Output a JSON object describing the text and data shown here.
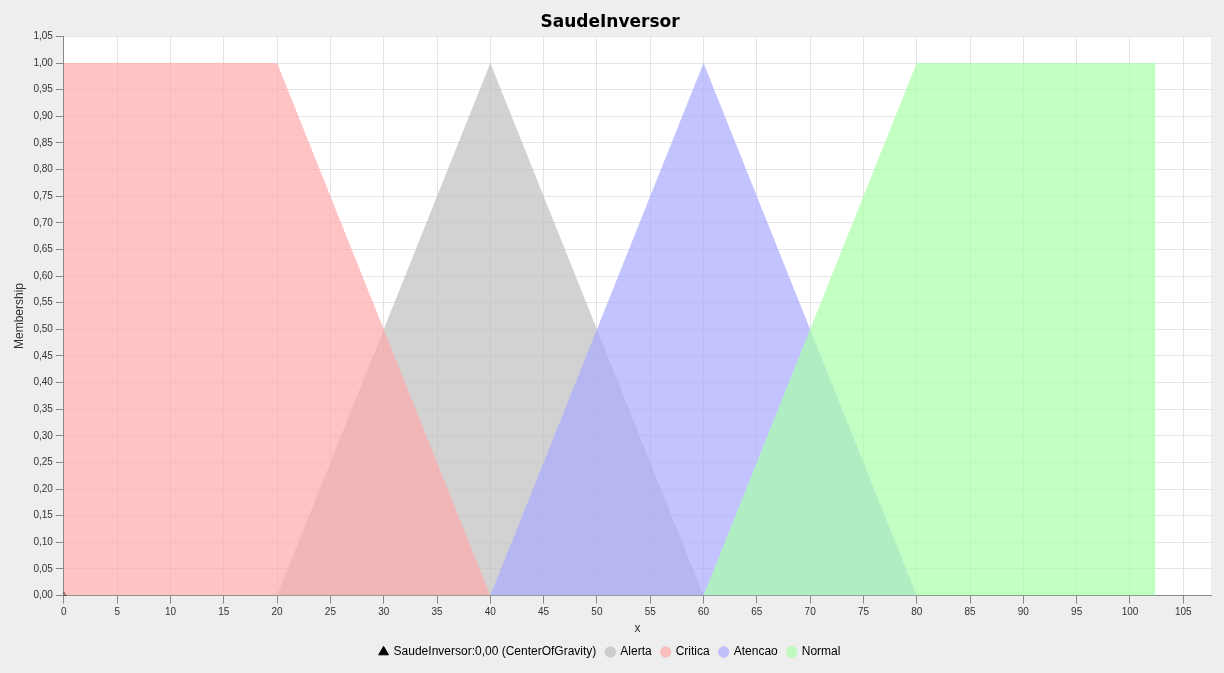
{
  "chart_data": {
    "type": "area",
    "title": "SaudeInversor",
    "xlabel": "x",
    "ylabel": "Membership",
    "series": [
      {
        "name": "SaudeInversor:0,00 (CenterOfGravity)",
        "type": "scatter",
        "marker": "triangle",
        "color": "#000000",
        "x": [
          0
        ],
        "values": [
          0
        ]
      },
      {
        "name": "Alerta",
        "color": "#bfbfbf",
        "x": [
          20,
          40,
          60
        ],
        "values": [
          0,
          1,
          0
        ]
      },
      {
        "name": "Critica",
        "color": "#ffaaaa",
        "x": [
          0,
          20,
          40
        ],
        "values": [
          1,
          1,
          0
        ]
      },
      {
        "name": "Atencao",
        "color": "#aaaaff",
        "x": [
          40,
          60,
          80
        ],
        "values": [
          0,
          1,
          0
        ]
      },
      {
        "name": "Normal",
        "color": "#aaffaa",
        "x": [
          60,
          80,
          102.4
        ],
        "values": [
          0,
          1,
          1
        ]
      }
    ],
    "xlim": [
      0,
      107.6
    ],
    "xticks": [
      0,
      5,
      10,
      15,
      20,
      25,
      30,
      35,
      40,
      45,
      50,
      55,
      60,
      65,
      70,
      75,
      80,
      85,
      90,
      95,
      100,
      105
    ],
    "ylim": [
      0,
      1.05
    ],
    "yticks": [
      {
        "value": 0,
        "label": "0,00"
      },
      {
        "value": 0.05,
        "label": "0,05"
      },
      {
        "value": 0.1,
        "label": "0,10"
      },
      {
        "value": 0.15,
        "label": "0,15"
      },
      {
        "value": 0.2,
        "label": "0,20"
      },
      {
        "value": 0.25,
        "label": "0,25"
      },
      {
        "value": 0.3,
        "label": "0,30"
      },
      {
        "value": 0.35,
        "label": "0,35"
      },
      {
        "value": 0.4,
        "label": "0,40"
      },
      {
        "value": 0.45,
        "label": "0,45"
      },
      {
        "value": 0.5,
        "label": "0,50"
      },
      {
        "value": 0.55,
        "label": "0,55"
      },
      {
        "value": 0.6,
        "label": "0,60"
      },
      {
        "value": 0.65,
        "label": "0,65"
      },
      {
        "value": 0.7,
        "label": "0,70"
      },
      {
        "value": 0.75,
        "label": "0,75"
      },
      {
        "value": 0.8,
        "label": "0,80"
      },
      {
        "value": 0.85,
        "label": "0,85"
      },
      {
        "value": 0.9,
        "label": "0,90"
      },
      {
        "value": 0.95,
        "label": "0,95"
      },
      {
        "value": 1,
        "label": "1,00"
      },
      {
        "value": 1.05,
        "label": "1,05"
      }
    ],
    "grid": true,
    "legend": "bottom"
  }
}
